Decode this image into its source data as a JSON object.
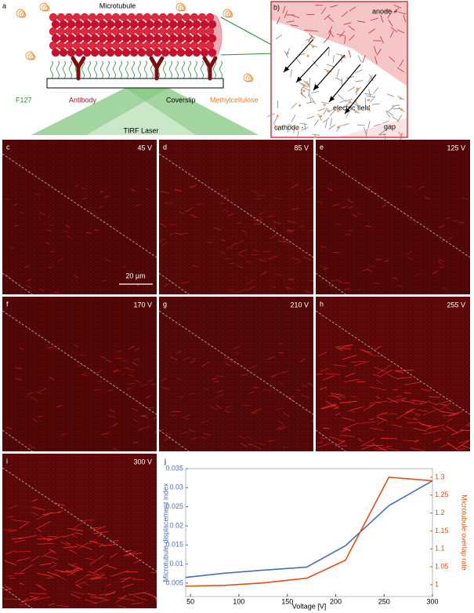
{
  "panel_a": {
    "label": "a",
    "microtubule": "Microtubule",
    "f127": "F127",
    "antibody": "Antibody",
    "coverslip": "Coverslip",
    "methylcellulose": "Methylcellulose",
    "laser": "TIRF Laser"
  },
  "panel_b": {
    "label": "b)",
    "anode": "anode +",
    "field": "electric field",
    "cathode": "cathode -",
    "gap": "gap"
  },
  "images": [
    {
      "label": "c",
      "voltage": "45 V"
    },
    {
      "label": "d",
      "voltage": "85 V"
    },
    {
      "label": "e",
      "voltage": "125 V"
    },
    {
      "label": "f",
      "voltage": "170 V"
    },
    {
      "label": "g",
      "voltage": "210 V"
    },
    {
      "label": "h",
      "voltage": "255 V"
    },
    {
      "label": "i",
      "voltage": "300 V"
    }
  ],
  "scale_bar": "20 µm",
  "chart_data": {
    "type": "line",
    "panel_label": "j",
    "xlabel": "Voltage [V]",
    "ylabel": "Microtubule displacement index",
    "y2label": "Microtubule overlap rate",
    "x": [
      45,
      85,
      125,
      170,
      210,
      255,
      300
    ],
    "series": [
      {
        "name": "Microtubule displacement index",
        "color": "#4a6fb0",
        "values": [
          0.0065,
          0.0076,
          0.0084,
          0.0092,
          0.0148,
          0.0253,
          0.0318
        ]
      },
      {
        "name": "Microtubule overlap rate",
        "color": "#d95319",
        "axis": "y2",
        "values": [
          0.996,
          0.998,
          1.005,
          1.018,
          1.068,
          1.3,
          1.29
        ]
      }
    ],
    "xlim": [
      45,
      300
    ],
    "xticks": [
      50,
      100,
      150,
      200,
      250,
      300
    ],
    "ylim": [
      0.0015,
      0.035
    ],
    "yticks": [
      0.005,
      0.01,
      0.015,
      0.02,
      0.025,
      0.03,
      0.035
    ],
    "y2lim": [
      0.967,
      1.324
    ],
    "y2ticks": [
      1,
      1.05,
      1.1,
      1.15,
      1.2,
      1.25,
      1.3
    ]
  }
}
